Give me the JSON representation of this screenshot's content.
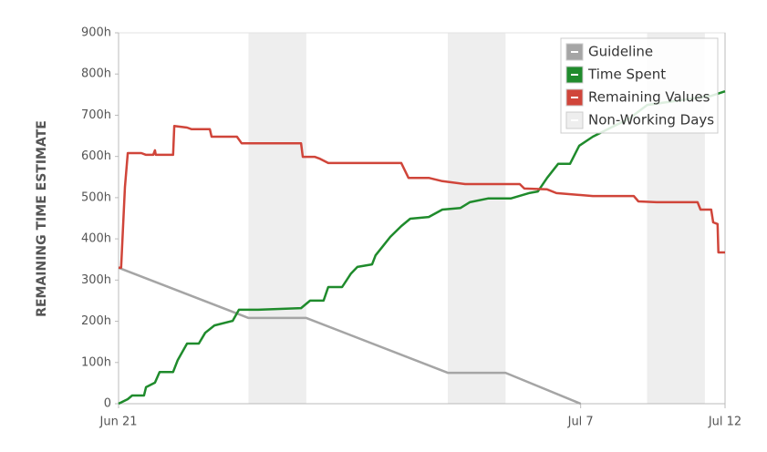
{
  "chart_data": {
    "type": "line",
    "y_label": "REMAINING TIME ESTIMATE",
    "xlim": [
      0,
      21
    ],
    "xticks": [
      {
        "value": 0,
        "label": "Jun 21"
      },
      {
        "value": 16,
        "label": "Jul 7"
      },
      {
        "value": 21,
        "label": "Jul 12"
      }
    ],
    "ylim": [
      0,
      900
    ],
    "yticks": [
      0,
      {
        "value": 100,
        "label": "100h"
      },
      {
        "value": 200,
        "label": "200h"
      },
      {
        "value": 300,
        "label": "300h"
      },
      {
        "value": 400,
        "label": "400h"
      },
      {
        "value": 500,
        "label": "500h"
      },
      {
        "value": 600,
        "label": "600h"
      },
      {
        "value": 700,
        "label": "700h"
      },
      {
        "value": 800,
        "label": "800h"
      },
      {
        "value": 900,
        "label": "900h"
      }
    ],
    "grid": false,
    "legend": "top-right",
    "shaded_regions": {
      "name": "Non-Working Days",
      "color": "#eeeeee",
      "ranges": [
        [
          4.5,
          6.5
        ],
        [
          11.4,
          13.4
        ],
        [
          18.3,
          20.3
        ]
      ]
    },
    "series": [
      {
        "name": "Guideline",
        "color": "#a5a5a5",
        "x": [
          0,
          4.5,
          6.5,
          11.4,
          13.4,
          16
        ],
        "values": [
          330,
          208,
          208,
          75,
          75,
          0
        ]
      },
      {
        "name": "Time Spent",
        "color": "#1f8b2c",
        "x": [
          0,
          0.32,
          0.47,
          0.88,
          0.95,
          1.26,
          1.42,
          1.89,
          2.05,
          2.37,
          2.78,
          3.0,
          3.32,
          3.95,
          4.17,
          4.83,
          6.32,
          6.63,
          7.1,
          7.26,
          7.74,
          8.05,
          8.27,
          8.78,
          8.9,
          9.16,
          9.41,
          9.79,
          10.1,
          10.74,
          11.21,
          11.84,
          12.16,
          12.79,
          13.58,
          14.21,
          14.52,
          14.84,
          15.22,
          15.63,
          15.95,
          16.42,
          17.05,
          17.68,
          18.31,
          20.52,
          21
        ],
        "values": [
          0,
          11,
          20,
          20,
          40,
          51,
          77,
          77,
          106,
          146,
          146,
          172,
          190,
          201,
          228,
          228,
          232,
          250,
          250,
          283,
          283,
          316,
          332,
          338,
          360,
          383,
          405,
          431,
          449,
          453,
          471,
          475,
          489,
          498,
          498,
          511,
          515,
          548,
          582,
          582,
          626,
          648,
          670,
          692,
          725,
          747,
          758
        ]
      },
      {
        "name": "Remaining Values",
        "color": "#d0453a",
        "x": [
          0,
          0.09,
          0.22,
          0.32,
          0.79,
          0.95,
          1.2,
          1.26,
          1.29,
          1.89,
          1.93,
          2.37,
          2.53,
          3.16,
          3.22,
          4.1,
          4.26,
          6.32,
          6.38,
          6.79,
          6.95,
          7.26,
          9.79,
          10.04,
          10.74,
          11.21,
          12.0,
          13.89,
          14.05,
          14.84,
          15.16,
          16.42,
          17.84,
          18.0,
          18.63,
          20.05,
          20.15,
          20.52,
          20.59,
          20.74,
          20.77,
          21
        ],
        "values": [
          330,
          330,
          526,
          608,
          608,
          604,
          604,
          615,
          604,
          604,
          674,
          670,
          666,
          666,
          648,
          648,
          632,
          632,
          599,
          599,
          595,
          584,
          584,
          548,
          548,
          540,
          533,
          533,
          522,
          520,
          511,
          504,
          504,
          491,
          489,
          489,
          471,
          471,
          440,
          436,
          367,
          367
        ]
      }
    ]
  }
}
